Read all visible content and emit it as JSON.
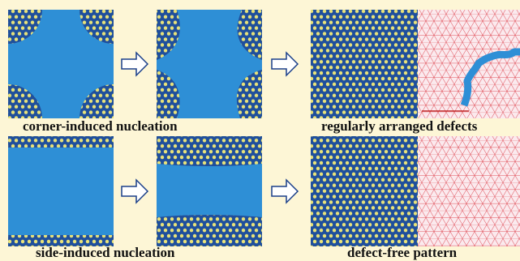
{
  "figure": {
    "rows": [
      {
        "left_caption": "corner-induced nucleation",
        "right_caption": "regularly arranged defects"
      },
      {
        "left_caption": "side-induced nucleation",
        "right_caption": "defect-free pattern"
      }
    ]
  }
}
